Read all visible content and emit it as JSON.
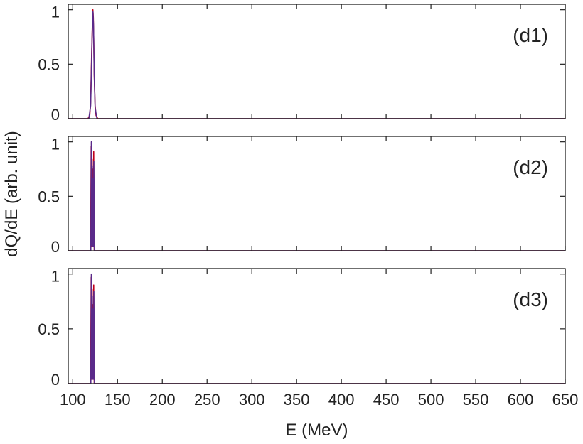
{
  "chart_data": {
    "type": "line",
    "xlabel": "E (MeV)",
    "ylabel": "dQ/dE (arb. unit)",
    "xlim": [
      95,
      650
    ],
    "ylim": [
      0,
      1.05
    ],
    "xticks": [
      100,
      150,
      200,
      250,
      300,
      350,
      400,
      450,
      500,
      550,
      600,
      650
    ],
    "xtick_labels": [
      "100",
      "150",
      "200",
      "250",
      "300",
      "350",
      "400",
      "450",
      "500",
      "550",
      "600",
      "650"
    ],
    "yticks": [
      0,
      0.5,
      1
    ],
    "ytick_labels": [
      "0",
      "0.5",
      "1"
    ],
    "grid": false,
    "colors": {
      "primary": "#c0001a",
      "secondary": "#5a2a8a",
      "axis": "#222222"
    },
    "panels": [
      {
        "label": "(d1)",
        "series": [
          {
            "color": "#c0001a",
            "x": [
              95,
              117,
              119,
              120,
              121,
              122,
              122.5,
              123,
              123.5,
              124,
              125,
              126,
              128,
              650
            ],
            "y": [
              0,
              0,
              0.03,
              0.15,
              0.55,
              0.9,
              1.0,
              0.93,
              0.7,
              0.4,
              0.12,
              0.03,
              0,
              0
            ]
          },
          {
            "color": "#5a2a8a",
            "x": [
              95,
              118,
              120,
              121,
              122,
              122.6,
              123.2,
              124,
              125,
              127,
              650
            ],
            "y": [
              0,
              0,
              0.12,
              0.5,
              0.88,
              0.98,
              0.85,
              0.42,
              0.1,
              0,
              0
            ]
          }
        ]
      },
      {
        "label": "(d2)",
        "series": [
          {
            "color": "#c0001a",
            "x": [
              95,
              120,
              120.6,
              121.1,
              121.6,
              122.1,
              122.5,
              123.0,
              123.4,
              124,
              650
            ],
            "y": [
              0,
              0,
              0.96,
              0.04,
              0.84,
              0.06,
              0.75,
              0.05,
              0.91,
              0,
              0
            ]
          },
          {
            "color": "#5a2a8a",
            "x": [
              95,
              120.2,
              120.8,
              121.3,
              121.8,
              122.3,
              122.8,
              123.2,
              123.6,
              124.2,
              650
            ],
            "y": [
              0,
              0,
              1.0,
              0.05,
              0.78,
              0.04,
              0.66,
              0.04,
              0.82,
              0,
              0
            ]
          }
        ]
      },
      {
        "label": "(d3)",
        "series": [
          {
            "color": "#c0001a",
            "x": [
              95,
              120,
              120.6,
              121.1,
              121.6,
              122.1,
              122.5,
              123.0,
              123.4,
              124,
              650
            ],
            "y": [
              0,
              0,
              0.97,
              0.04,
              0.86,
              0.05,
              0.72,
              0.05,
              0.9,
              0,
              0
            ]
          },
          {
            "color": "#5a2a8a",
            "x": [
              95,
              120.2,
              120.8,
              121.3,
              121.8,
              122.3,
              122.8,
              123.2,
              123.6,
              124.2,
              650
            ],
            "y": [
              0,
              0,
              1.0,
              0.05,
              0.8,
              0.04,
              0.68,
              0.04,
              0.84,
              0,
              0
            ]
          }
        ]
      }
    ]
  }
}
